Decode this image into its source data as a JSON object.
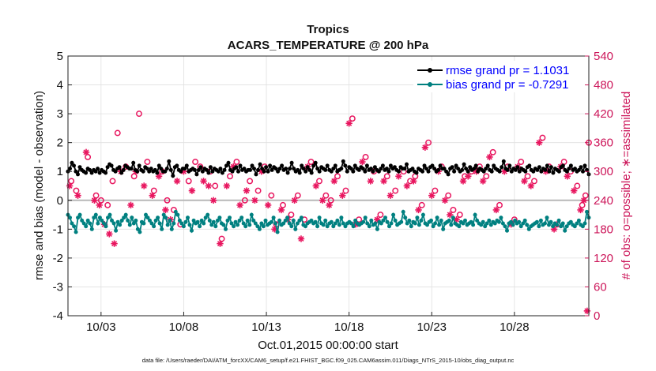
{
  "chart_data": {
    "type": "line",
    "title_line1": "Tropics",
    "title_line2": "ACARS_TEMPERATURE @ 200 hPa",
    "xlabel": "Oct.01,2015 00:00:00 start",
    "ylabel_left": "rmse and bias (model - observation)",
    "ylabel_right": "# of obs: o=possible; ∗=assimilated",
    "x_ticks": [
      {
        "day": 3,
        "label": "10/03"
      },
      {
        "day": 8,
        "label": "10/08"
      },
      {
        "day": 13,
        "label": "10/13"
      },
      {
        "day": 18,
        "label": "10/18"
      },
      {
        "day": 23,
        "label": "10/23"
      },
      {
        "day": 28,
        "label": "10/28"
      }
    ],
    "xlim": [
      1,
      32.5
    ],
    "ylim_left": [
      -4,
      5
    ],
    "yticks_left": [
      "-4",
      "-3",
      "-2",
      "-1",
      "0",
      "1",
      "2",
      "3",
      "4",
      "5"
    ],
    "ylim_right": [
      0,
      540
    ],
    "yticks_right": [
      "0",
      "60",
      "120",
      "180",
      "240",
      "300",
      "360",
      "420",
      "480",
      "540"
    ],
    "grid": true,
    "legend_position": "top-right",
    "series": [
      {
        "name": "rmse",
        "legend": "rmse grand pr = 1.1031",
        "color": "#000000",
        "values": [
          1.0,
          1.1,
          1.3,
          1.2,
          1.0,
          0.9,
          1.15,
          1.05,
          1.0,
          0.95,
          1.1,
          1.05,
          0.95,
          1.05,
          1.0,
          1.1,
          0.95,
          1.05,
          1.0,
          0.95,
          1.15,
          1.25,
          1.2,
          1.05,
          1.0,
          1.1,
          1.15,
          0.95,
          1.05,
          1.2,
          1.15,
          1.1,
          1.1,
          1.3,
          1.05,
          1.0,
          1.2,
          1.05,
          1.0,
          1.15,
          1.1,
          1.0,
          1.1,
          1.0,
          1.05,
          0.95,
          1.2,
          1.1,
          1.0,
          1.0,
          1.1,
          1.35,
          1.05,
          0.85,
          1.15,
          1.2,
          1.05,
          1.0,
          1.1,
          1.1,
          1.2,
          1.0,
          1.05,
          1.1,
          1.05,
          0.9,
          1.05,
          1.15,
          1.0,
          1.1,
          1.05,
          0.95,
          1.15,
          1.0,
          1.1,
          1.05,
          1.0,
          1.1,
          0.95,
          1.05,
          1.2,
          1.3,
          1.05,
          1.0,
          1.1,
          1.15,
          1.0,
          1.2,
          1.05,
          1.1,
          1.0,
          1.05,
          1.05,
          1.2,
          1.1,
          0.9,
          1.05,
          1.25,
          1.1,
          1.0,
          1.15,
          1.0,
          1.2,
          1.05,
          1.15,
          1.1,
          1.0,
          1.1,
          1.2,
          1.05,
          1.1,
          0.95,
          1.1,
          1.3,
          1.1,
          1.0,
          1.05,
          0.95,
          1.2,
          1.1,
          1.0,
          1.15,
          1.05,
          0.95,
          1.2,
          1.3,
          1.1,
          1.0,
          1.15,
          1.1,
          1.05,
          1.2,
          1.05,
          1.0,
          1.1,
          1.2,
          1.0,
          1.05,
          1.1,
          1.35,
          1.2,
          1.0,
          1.15,
          1.1,
          1.0,
          1.2,
          1.1,
          1.05,
          1.15,
          1.1,
          1.0,
          1.2,
          1.05,
          1.1,
          1.0,
          1.15,
          1.05,
          1.0,
          1.1,
          1.2,
          1.05,
          1.1,
          1.0,
          1.2,
          1.1,
          1.15,
          1.05,
          1.0,
          1.15,
          1.1,
          1.1,
          1.25,
          1.0,
          1.05,
          1.1,
          1.0,
          0.95,
          1.1,
          1.05,
          1.0,
          1.2,
          1.1,
          1.0,
          1.15,
          1.2,
          1.1,
          1.0,
          1.05,
          1.2,
          1.1,
          1.1,
          1.0,
          0.9,
          1.1,
          1.15,
          1.0,
          1.2,
          1.1,
          1.0,
          1.05,
          1.25,
          1.1,
          1.0,
          1.15,
          1.05,
          1.1,
          1.2,
          1.0,
          1.1,
          1.05,
          1.0,
          1.1,
          1.2,
          1.05,
          1.0,
          1.2,
          1.1,
          1.05,
          1.0,
          1.15,
          1.35,
          1.1,
          1.05,
          1.2,
          1.0,
          1.1,
          1.05,
          1.15,
          1.0,
          1.1,
          1.05,
          1.0,
          1.15,
          1.2,
          1.05,
          1.0,
          1.1,
          1.05,
          1.15,
          1.0,
          1.1,
          1.05,
          1.2,
          1.0,
          1.15,
          0.95,
          1.1,
          1.05,
          1.0,
          1.15,
          1.2,
          1.05,
          1.0,
          1.1,
          1.2,
          1.05,
          1.1,
          1.0,
          1.05,
          1.15,
          1.0,
          1.2,
          1.05,
          0.9
        ]
      },
      {
        "name": "bias",
        "legend": "bias grand pr = -0.7291",
        "color": "#008080",
        "values": [
          -0.5,
          -0.6,
          -0.8,
          -0.9,
          -1.1,
          -0.6,
          -0.5,
          -0.7,
          -0.8,
          -0.9,
          -0.7,
          -0.8,
          -1.0,
          -0.6,
          -0.5,
          -0.8,
          -0.6,
          -0.7,
          -0.8,
          -0.9,
          -0.6,
          -0.5,
          -0.7,
          -0.8,
          -1.05,
          -0.75,
          -0.85,
          -0.7,
          -0.6,
          -0.5,
          -0.7,
          -0.85,
          -0.6,
          -0.8,
          -0.7,
          -1.0,
          -1.1,
          -0.75,
          -0.8,
          -0.5,
          -0.6,
          -0.7,
          -0.8,
          -0.9,
          -0.7,
          -0.6,
          -0.8,
          -1.0,
          -0.5,
          -0.6,
          -0.85,
          -0.7,
          -1.0,
          -0.8,
          -0.4,
          -0.5,
          -0.7,
          -0.8,
          -0.9,
          -0.75,
          -0.6,
          -0.85,
          -1.05,
          -0.7,
          -0.8,
          -0.75,
          -0.9,
          -0.7,
          -0.8,
          -0.6,
          -0.5,
          -0.7,
          -0.85,
          -0.75,
          -0.9,
          -0.7,
          -0.6,
          -0.8,
          -0.85,
          -1.0,
          -0.7,
          -0.6,
          -0.8,
          -0.9,
          -0.75,
          -0.85,
          -0.7,
          -0.6,
          -0.8,
          -0.9,
          -0.7,
          -0.85,
          -0.5,
          -0.7,
          -0.8,
          -0.9,
          -1.0,
          -0.8,
          -0.9,
          -0.7,
          -0.85,
          -0.8,
          -0.75,
          -0.6,
          -0.8,
          -1.1,
          -0.7,
          -0.85,
          -0.8,
          -0.7,
          -0.6,
          -0.8,
          -0.9,
          -0.7,
          -1.0,
          -0.8,
          -0.7,
          -0.6,
          -0.85,
          -0.9,
          -0.8,
          -0.75,
          -0.7,
          -0.8,
          -0.75,
          -0.9,
          -0.6,
          -0.8,
          -0.85,
          -0.7,
          -0.9,
          -0.8,
          -0.75,
          -0.9,
          -0.8,
          -0.7,
          -0.85,
          -0.6,
          -0.8,
          -0.9,
          -0.8,
          -0.75,
          -0.8,
          -0.9,
          -0.7,
          -0.8,
          -0.85,
          -0.8,
          -0.75,
          -0.6,
          -0.8,
          -0.9,
          -0.7,
          -0.85,
          -0.8,
          -1.0,
          -0.75,
          -0.8,
          -0.7,
          -0.6,
          -0.75,
          -0.9,
          -0.8,
          -0.5,
          -0.7,
          -0.85,
          -0.8,
          -0.75,
          -0.4,
          -0.6,
          -0.8,
          -0.7,
          -0.9,
          -0.75,
          -0.8,
          -0.6,
          -0.85,
          -0.7,
          -0.5,
          -0.8,
          -0.85,
          -0.75,
          -0.7,
          -0.9,
          -0.8,
          -0.6,
          -0.85,
          -0.7,
          -1.0,
          -0.8,
          -0.75,
          -0.7,
          -0.85,
          -0.6,
          -0.8,
          -0.85,
          -0.9,
          -0.75,
          -0.8,
          -0.7,
          -0.85,
          -0.8,
          -0.75,
          -0.85,
          -0.5,
          -0.7,
          -0.8,
          -0.85,
          -0.75,
          -0.9,
          -0.8,
          -0.7,
          -0.85,
          -0.75,
          -0.8,
          -0.7,
          -0.75,
          -0.6,
          -0.8,
          -0.9,
          -1.05,
          -0.8,
          -0.75,
          -0.85,
          -0.7,
          -0.8,
          -0.75,
          -0.9,
          -0.8,
          -0.7,
          -0.85,
          -1.0,
          -0.9,
          -0.85,
          -0.8,
          -0.75,
          -0.9,
          -0.7,
          -0.85,
          -0.8,
          -0.6,
          -0.85,
          -0.75,
          -0.9,
          -0.8,
          -0.85,
          -0.7,
          -0.9,
          -0.8,
          -1.05,
          -0.9,
          -0.8,
          -0.75,
          -0.85,
          -0.9,
          -0.8,
          -0.7,
          -0.85,
          -0.9,
          -0.8,
          -0.4,
          -0.6
        ]
      },
      {
        "name": "obs possible (circles)",
        "color": "#e8165f",
        "marker": "o",
        "points": [
          [
            1.2,
            280
          ],
          [
            1.5,
            260
          ],
          [
            2.2,
            330
          ],
          [
            2.7,
            250
          ],
          [
            3.0,
            240
          ],
          [
            3.4,
            230
          ],
          [
            3.7,
            280
          ],
          [
            4.0,
            380
          ],
          [
            4.5,
            310
          ],
          [
            5.0,
            290
          ],
          [
            5.3,
            420
          ],
          [
            5.8,
            320
          ],
          [
            6.2,
            260
          ],
          [
            6.7,
            300
          ],
          [
            7.0,
            240
          ],
          [
            7.4,
            220
          ],
          [
            7.8,
            190
          ],
          [
            8.3,
            280
          ],
          [
            8.7,
            320
          ],
          [
            9.0,
            310
          ],
          [
            9.6,
            300
          ],
          [
            9.9,
            270
          ],
          [
            10.3,
            160
          ],
          [
            10.8,
            290
          ],
          [
            11.2,
            320
          ],
          [
            11.7,
            240
          ],
          [
            12.0,
            280
          ],
          [
            12.5,
            260
          ],
          [
            12.9,
            310
          ],
          [
            13.3,
            250
          ],
          [
            13.6,
            190
          ],
          [
            14.0,
            230
          ],
          [
            14.5,
            210
          ],
          [
            14.9,
            250
          ],
          [
            15.3,
            200
          ],
          [
            15.7,
            320
          ],
          [
            16.2,
            280
          ],
          [
            16.6,
            250
          ],
          [
            16.9,
            240
          ],
          [
            17.3,
            290
          ],
          [
            17.8,
            260
          ],
          [
            18.2,
            410
          ],
          [
            18.6,
            200
          ],
          [
            19.0,
            330
          ],
          [
            19.5,
            300
          ],
          [
            19.9,
            210
          ],
          [
            20.3,
            290
          ],
          [
            20.8,
            260
          ],
          [
            21.3,
            300
          ],
          [
            21.7,
            280
          ],
          [
            22.0,
            290
          ],
          [
            22.4,
            230
          ],
          [
            22.8,
            360
          ],
          [
            23.2,
            260
          ],
          [
            23.6,
            310
          ],
          [
            24.0,
            250
          ],
          [
            24.3,
            220
          ],
          [
            24.7,
            210
          ],
          [
            25.0,
            290
          ],
          [
            25.4,
            300
          ],
          [
            25.9,
            310
          ],
          [
            26.3,
            290
          ],
          [
            26.7,
            340
          ],
          [
            27.1,
            230
          ],
          [
            27.6,
            310
          ],
          [
            28.0,
            200
          ],
          [
            28.4,
            320
          ],
          [
            28.8,
            290
          ],
          [
            29.2,
            280
          ],
          [
            29.7,
            370
          ],
          [
            30.1,
            310
          ],
          [
            30.6,
            190
          ],
          [
            31.0,
            320
          ],
          [
            31.4,
            300
          ],
          [
            31.8,
            270
          ],
          [
            32.1,
            230
          ],
          [
            32.3,
            250
          ],
          [
            32.5,
            360
          ]
        ]
      },
      {
        "name": "obs assimilated (asterisks)",
        "color": "#e8165f",
        "marker": "*",
        "points": [
          [
            1.1,
            270
          ],
          [
            1.6,
            250
          ],
          [
            2.1,
            340
          ],
          [
            2.6,
            240
          ],
          [
            2.9,
            230
          ],
          [
            3.2,
            190
          ],
          [
            3.5,
            170
          ],
          [
            3.8,
            150
          ],
          [
            4.2,
            300
          ],
          [
            4.8,
            230
          ],
          [
            5.1,
            300
          ],
          [
            5.6,
            270
          ],
          [
            6.1,
            250
          ],
          [
            6.5,
            290
          ],
          [
            6.9,
            220
          ],
          [
            7.2,
            200
          ],
          [
            7.6,
            280
          ],
          [
            8.0,
            300
          ],
          [
            8.5,
            260
          ],
          [
            9.2,
            280
          ],
          [
            9.5,
            270
          ],
          [
            9.8,
            240
          ],
          [
            10.2,
            150
          ],
          [
            10.6,
            270
          ],
          [
            11.0,
            310
          ],
          [
            11.4,
            230
          ],
          [
            11.8,
            260
          ],
          [
            12.3,
            240
          ],
          [
            12.7,
            300
          ],
          [
            13.1,
            230
          ],
          [
            13.5,
            180
          ],
          [
            13.9,
            220
          ],
          [
            14.3,
            200
          ],
          [
            14.7,
            240
          ],
          [
            15.1,
            160
          ],
          [
            15.5,
            310
          ],
          [
            16.0,
            270
          ],
          [
            16.4,
            240
          ],
          [
            16.8,
            230
          ],
          [
            17.1,
            280
          ],
          [
            17.6,
            250
          ],
          [
            18.0,
            400
          ],
          [
            18.4,
            190
          ],
          [
            18.8,
            320
          ],
          [
            19.3,
            280
          ],
          [
            19.7,
            200
          ],
          [
            20.1,
            280
          ],
          [
            20.5,
            250
          ],
          [
            21.0,
            290
          ],
          [
            21.5,
            270
          ],
          [
            21.9,
            280
          ],
          [
            22.2,
            220
          ],
          [
            22.6,
            350
          ],
          [
            23.0,
            250
          ],
          [
            23.4,
            300
          ],
          [
            23.8,
            240
          ],
          [
            24.1,
            210
          ],
          [
            24.5,
            200
          ],
          [
            24.9,
            280
          ],
          [
            25.2,
            290
          ],
          [
            25.7,
            300
          ],
          [
            26.1,
            280
          ],
          [
            26.5,
            330
          ],
          [
            26.9,
            220
          ],
          [
            27.4,
            300
          ],
          [
            27.8,
            190
          ],
          [
            28.2,
            310
          ],
          [
            28.6,
            280
          ],
          [
            29.0,
            270
          ],
          [
            29.5,
            360
          ],
          [
            29.9,
            300
          ],
          [
            30.4,
            180
          ],
          [
            30.8,
            310
          ],
          [
            31.2,
            290
          ],
          [
            31.6,
            260
          ],
          [
            32.0,
            220
          ],
          [
            32.2,
            240
          ],
          [
            32.4,
            10
          ]
        ]
      }
    ],
    "footnote": "data file: /Users/raeder/DAI/ATM_forcXX/CAM6_setup/f.e21.FHIST_BGC.f09_025.CAM6assim.011/Diags_NTrS_2015-10/obs_diag_output.nc"
  }
}
